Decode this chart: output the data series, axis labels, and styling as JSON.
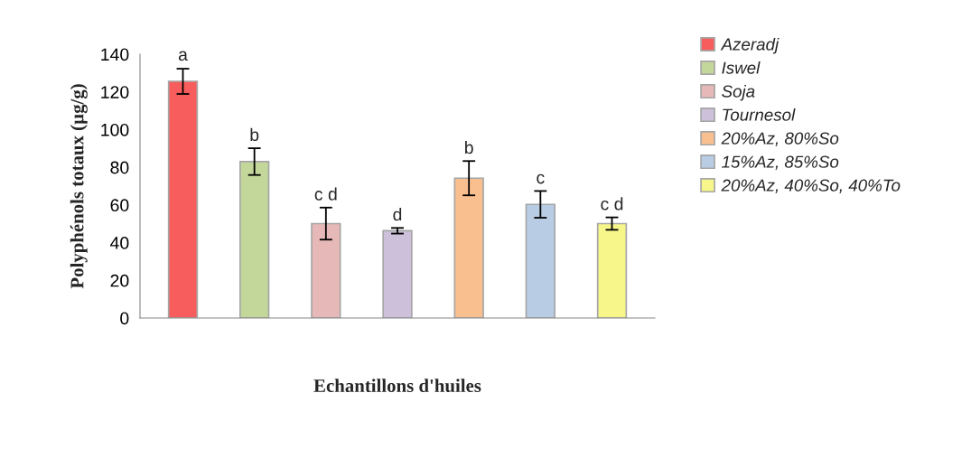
{
  "chart_data": {
    "type": "bar",
    "xlabel": "Echantillons d'huiles",
    "ylabel": "Polyphénols totaux (µg/g)",
    "categories": [
      null,
      null,
      null,
      null,
      null,
      null,
      null
    ],
    "series": [
      {
        "name": "Azeradj",
        "color": "#f85d5d",
        "values": [
          125.6,
          null,
          null,
          null,
          null,
          null,
          null
        ],
        "errors": [
          6.7,
          null,
          null,
          null,
          null,
          null,
          null
        ]
      },
      {
        "name": "Iswel",
        "color": "#c4d79b",
        "values": [
          null,
          83.0,
          null,
          null,
          null,
          null,
          null
        ],
        "errors": [
          null,
          7.1,
          null,
          null,
          null,
          null,
          null
        ]
      },
      {
        "name": "Soja",
        "color": "#e6b8b7",
        "values": [
          null,
          null,
          50.1,
          null,
          null,
          null,
          null
        ],
        "errors": [
          null,
          null,
          8.5,
          null,
          null,
          null,
          null
        ]
      },
      {
        "name": "Tournesol",
        "color": "#ccc0da",
        "values": [
          null,
          null,
          null,
          46.3,
          null,
          null,
          null
        ],
        "errors": [
          null,
          null,
          null,
          1.5,
          null,
          null,
          null
        ]
      },
      {
        "name": "20%Az, 80%So",
        "color": "#fabf8f",
        "values": [
          null,
          null,
          null,
          null,
          74.2,
          null,
          null
        ],
        "errors": [
          null,
          null,
          null,
          null,
          9.1,
          null,
          null
        ]
      },
      {
        "name": "15%Az, 85%So",
        "color": "#b8cce4",
        "values": [
          null,
          null,
          null,
          null,
          null,
          60.3,
          null
        ],
        "errors": [
          null,
          null,
          null,
          null,
          null,
          7.1,
          null
        ]
      },
      {
        "name": "20%Az, 40%So, 40%To",
        "color": "#f6f68a",
        "values": [
          null,
          null,
          null,
          null,
          null,
          null,
          50.1
        ],
        "errors": [
          null,
          null,
          null,
          null,
          null,
          null,
          3.3
        ]
      }
    ],
    "ylim": [
      0,
      140
    ],
    "yticks": [
      0,
      20,
      40,
      60,
      80,
      100,
      120,
      140
    ],
    "tick_labels": "y",
    "legend": "right",
    "annotations": [
      {
        "text": "a",
        "y": 132.7
      },
      {
        "text": "b",
        "y": 90.1
      },
      {
        "text": "c d",
        "y": 58.6
      },
      {
        "text": "d",
        "y": 47.8
      },
      {
        "text": "b",
        "y": 83.3
      },
      {
        "text": "c",
        "y": 67.4
      },
      {
        "text": "c d",
        "y": 53.4
      }
    ]
  }
}
